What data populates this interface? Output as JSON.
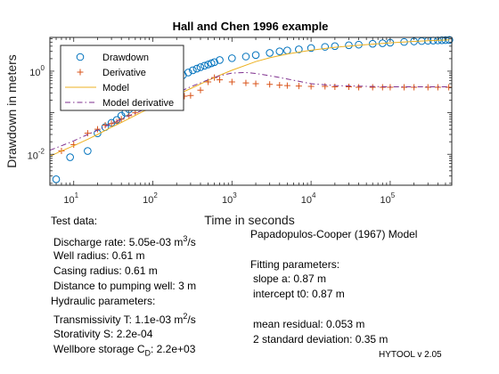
{
  "chart_data": {
    "type": "scatter",
    "title": "Hall and Chen 1996 example",
    "xlabel": "Time in seconds",
    "ylabel": "Drawdown in meters",
    "xscale": "log",
    "yscale": "log",
    "xlim": [
      5,
      600000
    ],
    "ylim": [
      0.0018,
      6.5
    ],
    "x_ticks": [
      10,
      100,
      1000,
      10000,
      100000
    ],
    "x_tick_labels": [
      [
        "10",
        "1"
      ],
      [
        "10",
        "2"
      ],
      [
        "10",
        "3"
      ],
      [
        "10",
        "4"
      ],
      [
        "10",
        "5"
      ]
    ],
    "y_ticks": [
      0.01,
      1
    ],
    "y_tick_labels": [
      [
        "10",
        "-2"
      ],
      [
        "10",
        "0"
      ]
    ],
    "legend_position": "top-left",
    "series": [
      {
        "name": "Drawdown",
        "marker": "circle",
        "color": "#0072BD",
        "x": [
          6,
          9,
          15,
          20,
          25,
          30,
          35,
          40,
          45,
          50,
          60,
          70,
          80,
          90,
          100,
          120,
          140,
          160,
          180,
          200,
          240,
          280,
          320,
          360,
          400,
          450,
          500,
          550,
          600,
          700,
          1000,
          1500,
          2000,
          3000,
          4000,
          5000,
          7000,
          10000,
          15000,
          20000,
          30000,
          40000,
          60000,
          80000,
          100000,
          150000,
          200000,
          250000,
          300000,
          350000,
          400000,
          450000,
          500000,
          560000
        ],
        "y": [
          0.0025,
          0.0085,
          0.012,
          0.032,
          0.045,
          0.057,
          0.067,
          0.085,
          0.1,
          0.12,
          0.15,
          0.19,
          0.22,
          0.27,
          0.32,
          0.38,
          0.45,
          0.52,
          0.6,
          0.68,
          0.8,
          0.93,
          1.05,
          1.15,
          1.25,
          1.35,
          1.45,
          1.55,
          1.65,
          1.85,
          2.05,
          2.25,
          2.45,
          2.75,
          3.0,
          3.15,
          3.35,
          3.6,
          3.85,
          4.0,
          4.2,
          4.35,
          4.55,
          4.7,
          4.85,
          5.05,
          5.2,
          5.3,
          5.4,
          5.45,
          5.5,
          5.55,
          5.6,
          5.65
        ]
      },
      {
        "name": "Derivative",
        "marker": "plus",
        "color": "#D95319",
        "x": [
          7,
          10,
          15,
          20,
          25,
          30,
          35,
          40,
          50,
          60,
          80,
          100,
          120,
          150,
          200,
          250,
          300,
          400,
          500,
          600,
          700,
          1000,
          1500,
          2000,
          3000,
          4000,
          5000,
          7000,
          10000,
          15000,
          20000,
          30000,
          40000,
          60000,
          80000,
          100000,
          150000,
          200000,
          300000,
          400000,
          550000
        ],
        "y": [
          0.012,
          0.017,
          0.032,
          0.04,
          0.05,
          0.055,
          0.06,
          0.07,
          0.085,
          0.1,
          0.13,
          0.15,
          0.17,
          0.19,
          0.22,
          0.25,
          0.26,
          0.35,
          0.55,
          0.7,
          0.62,
          0.55,
          0.52,
          0.5,
          0.48,
          0.46,
          0.45,
          0.44,
          0.43,
          0.43,
          0.42,
          0.42,
          0.41,
          0.41,
          0.41,
          0.41,
          0.41,
          0.41,
          0.41,
          0.41,
          0.41
        ]
      },
      {
        "name": "Model",
        "line": "solid",
        "color": "#EDB120",
        "x": [
          5,
          7,
          10,
          15,
          20,
          30,
          40,
          50,
          70,
          100,
          150,
          200,
          300,
          500,
          700,
          1000,
          2000,
          3000,
          5000,
          10000,
          20000,
          50000,
          100000,
          200000,
          300000,
          560000
        ],
        "y": [
          0.009,
          0.012,
          0.016,
          0.023,
          0.03,
          0.045,
          0.058,
          0.072,
          0.1,
          0.14,
          0.2,
          0.27,
          0.38,
          0.6,
          0.8,
          1.05,
          1.7,
          2.1,
          2.6,
          3.2,
          3.75,
          4.35,
          4.8,
          5.2,
          5.4,
          5.65
        ]
      },
      {
        "name": "Model derivative",
        "line": "dashdot",
        "color": "#7E2F8E",
        "x": [
          5,
          7,
          10,
          15,
          20,
          30,
          40,
          50,
          70,
          100,
          150,
          200,
          300,
          500,
          700,
          1000,
          1500,
          2000,
          3000,
          5000,
          7000,
          10000,
          20000,
          50000,
          100000,
          200000,
          560000
        ],
        "y": [
          0.0125,
          0.016,
          0.021,
          0.03,
          0.038,
          0.055,
          0.07,
          0.085,
          0.11,
          0.15,
          0.22,
          0.3,
          0.42,
          0.62,
          0.78,
          0.9,
          0.93,
          0.88,
          0.78,
          0.65,
          0.57,
          0.5,
          0.45,
          0.43,
          0.42,
          0.42,
          0.42
        ]
      }
    ]
  },
  "info": {
    "test_data_title": "Test data:",
    "discharge_prefix": "Discharge rate: 5.05e-03 m",
    "discharge_sup": "3",
    "discharge_suffix": "/s",
    "well_radius": "Well radius: 0.61 m",
    "casing_radius": "Casing radius: 0.61 m",
    "distance": "Distance to pumping well: 3 m",
    "hydraulic_title": "Hydraulic parameters:",
    "transmissivity_prefix": "Transmissivity T: 1.1e-03 m",
    "transmissivity_sup": "2",
    "transmissivity_suffix": "/s",
    "storativity": "Storativity S: 2.2e-04",
    "wellbore_prefix": "Wellbore storage C",
    "wellbore_sub": "D",
    "wellbore_suffix": ": 2.2e+03",
    "model_name": "Papadopulos-Cooper (1967) Model",
    "fitting_title": "Fitting parameters:",
    "slope": "slope a: 0.87 m",
    "intercept": "intercept t0: 0.87 m",
    "mean_residual": "mean residual: 0.053 m",
    "std_dev": "2 standard deviation: 0.35 m",
    "version": "HYTOOL v 2.05"
  }
}
